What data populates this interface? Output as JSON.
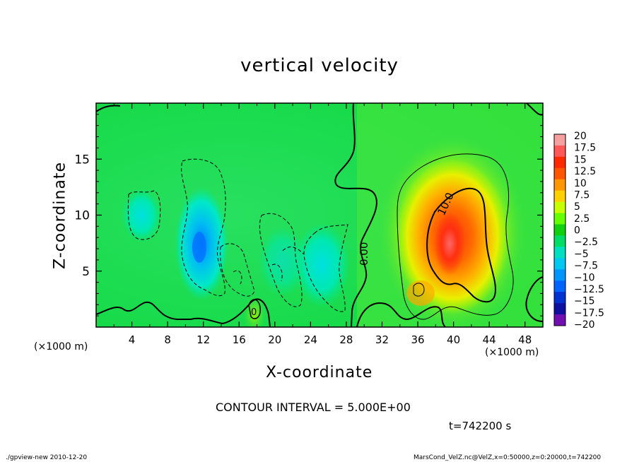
{
  "title": "vertical velocity",
  "footer": {
    "left": "./gpview-new  2010-12-20",
    "right": "MarsCond_VelZ.nc@VelZ,x=0:50000,z=0:20000,t=742200"
  },
  "contour_note": "CONTOUR INTERVAL = 5.000E+00",
  "time_label": "t=742200 s",
  "chart_data": {
    "type": "heatmap",
    "title": "vertical velocity",
    "xlabel": "X-coordinate",
    "ylabel": "Z-coordinate",
    "x_unit": "(×1000 m)",
    "z_unit": "(×1000 m)",
    "xlim": [
      0,
      50
    ],
    "ylim": [
      0,
      20
    ],
    "x_ticks": [
      4,
      8,
      12,
      16,
      20,
      24,
      28,
      32,
      36,
      40,
      44,
      48
    ],
    "y_ticks": [
      5,
      10,
      15
    ],
    "colorbar": {
      "labels": [
        "20",
        "17.5",
        "15",
        "12.5",
        "10",
        "7.5",
        "5",
        "2.5",
        "0",
        "−2.5",
        "−5",
        "−7.5",
        "−10",
        "−12.5",
        "−15",
        "−17.5",
        "−20"
      ],
      "colors": [
        "#f4a0a0",
        "#ff5858",
        "#ff2a00",
        "#ff5400",
        "#ff9800",
        "#ffd000",
        "#c8ff00",
        "#66ff00",
        "#10d010",
        "#00dd66",
        "#00e0c0",
        "#00c8f0",
        "#0096ff",
        "#0064ff",
        "#0032d0",
        "#1010a0",
        "#7010b0"
      ]
    },
    "contour_interval": 5.0,
    "contour_labels": [
      "0.00",
      "10.0",
      "0"
    ],
    "features": [
      {
        "kind": "updraft",
        "x": 40,
        "z": 7.5,
        "peak": 17.5
      },
      {
        "kind": "downdraft",
        "x": 11.5,
        "z": 7.5,
        "peak": -10
      },
      {
        "kind": "downdraft",
        "x": 5,
        "z": 10.5,
        "peak": -5
      },
      {
        "kind": "downdraft",
        "x": 26,
        "z": 5,
        "peak": -5
      },
      {
        "kind": "updraft",
        "x": 18,
        "z": 1.5,
        "peak": 5
      }
    ]
  }
}
